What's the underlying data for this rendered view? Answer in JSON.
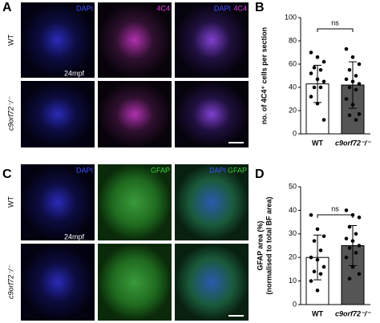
{
  "figure": {
    "panel_labels": [
      "A",
      "B",
      "C",
      "D"
    ],
    "row_labels": [
      "WT",
      "c9orf72⁻/⁻"
    ],
    "stage": "24mpf",
    "channels_A": [
      "DAPI",
      "4C4",
      "DAPI",
      "4C4"
    ],
    "channels_C": [
      "DAPI",
      "GFAP",
      "DAPI",
      "GFAP"
    ]
  },
  "chart_data": [
    {
      "type": "bar",
      "ylabel": [
        "no. of 4C4⁺ cells per section"
      ],
      "annotation": "ns",
      "categories": [
        "WT",
        "c9orf72⁻/⁻"
      ],
      "colors": [
        "#ffffff",
        "#555555"
      ],
      "values": [
        43,
        42
      ],
      "errors": [
        16,
        20
      ],
      "points": [
        [
          70,
          66,
          62,
          57,
          55,
          52,
          47,
          45,
          40,
          40,
          32,
          26,
          12
        ],
        [
          73,
          66,
          60,
          55,
          50,
          47,
          45,
          43,
          40,
          38,
          30,
          25,
          17,
          16,
          12
        ]
      ],
      "ylim": [
        0,
        100
      ],
      "yticks": [
        0,
        20,
        40,
        60,
        80,
        100
      ]
    },
    {
      "type": "bar",
      "ylabel": [
        "GFAP area (%)",
        "(normalised to total BF area)"
      ],
      "annotation": "ns",
      "categories": [
        "WT",
        "c9orf72⁻/⁻"
      ],
      "colors": [
        "#ffffff",
        "#555555"
      ],
      "values": [
        20,
        25
      ],
      "errors": [
        9.5,
        8.5
      ],
      "points": [
        [
          38,
          32,
          29,
          27,
          23,
          20,
          19,
          16,
          14,
          13,
          10,
          6
        ],
        [
          40,
          38,
          37,
          33,
          30,
          28,
          27,
          25,
          24,
          22,
          20,
          16,
          13,
          11
        ]
      ],
      "ylim": [
        0,
        50
      ],
      "yticks": [
        0,
        10,
        20,
        30,
        40,
        50
      ]
    }
  ]
}
